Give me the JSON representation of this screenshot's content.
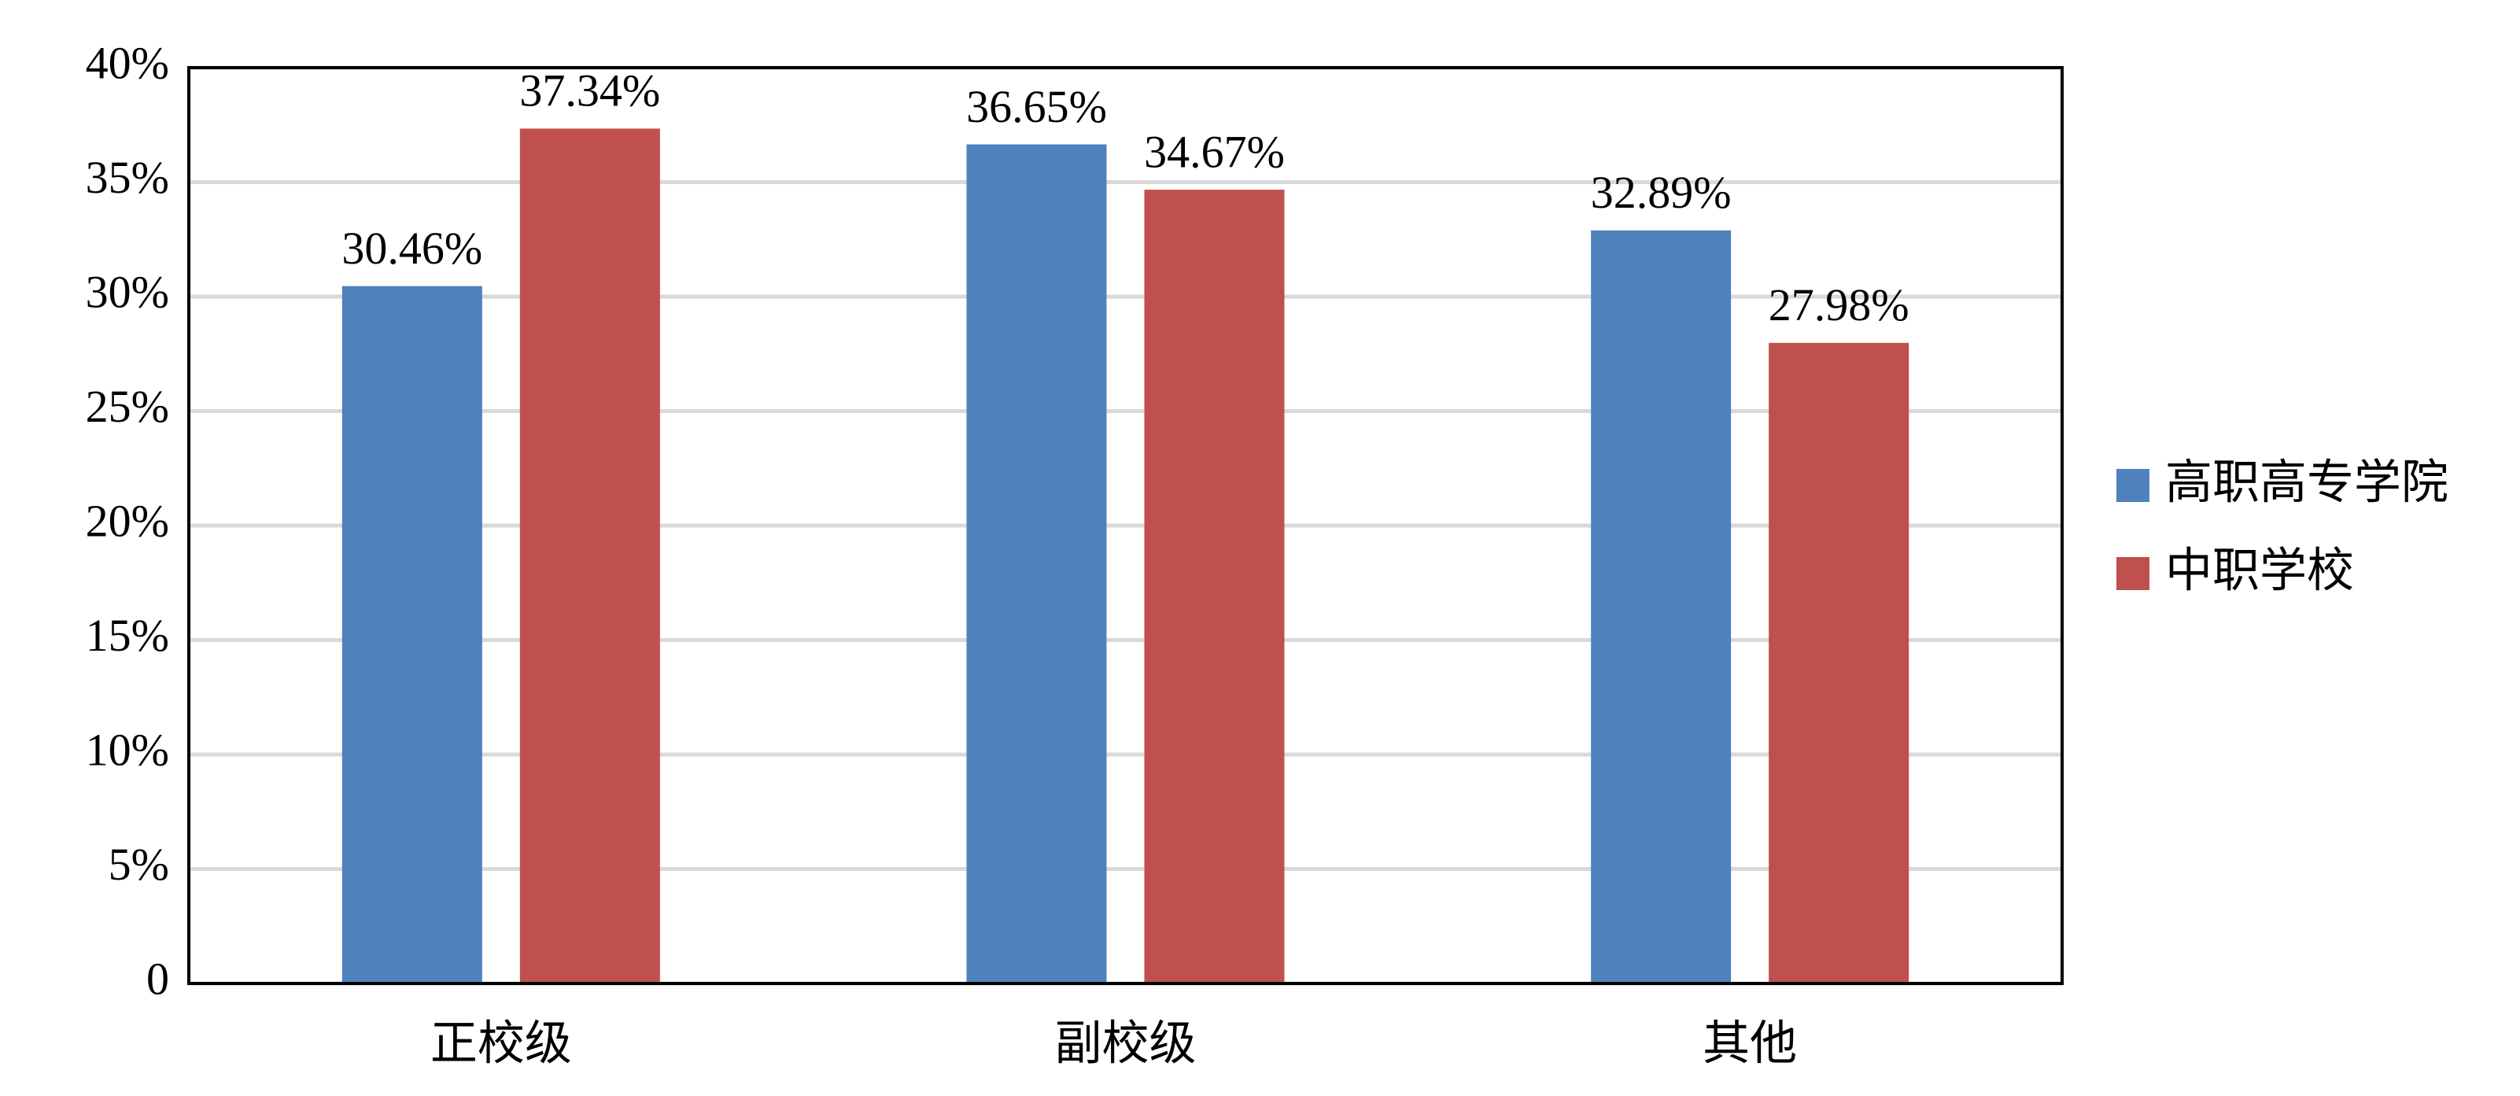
{
  "chart_data": {
    "type": "bar",
    "categories": [
      "正校级",
      "副校级",
      "其他"
    ],
    "series": [
      {
        "name": "高职高专学院",
        "color": "#4f81bd",
        "values": [
          30.46,
          36.65,
          32.89
        ],
        "value_labels": [
          "30.46%",
          "36.65%",
          "32.89%"
        ]
      },
      {
        "name": "中职学校",
        "color": "#c0504d",
        "values": [
          37.34,
          34.67,
          27.98
        ],
        "value_labels": [
          "37.34%",
          "34.67%",
          "27.98%"
        ]
      }
    ],
    "ylim": [
      0,
      40
    ],
    "yticks": [
      0,
      {
        "value": 5,
        "label": "5%"
      },
      {
        "value": 10,
        "label": "10%"
      },
      {
        "value": 15,
        "label": "15%"
      },
      {
        "value": 20,
        "label": "20%"
      },
      {
        "value": 25,
        "label": "25%"
      },
      {
        "value": 30,
        "label": "30%"
      },
      {
        "value": 35,
        "label": "35%"
      },
      {
        "value": 40,
        "label": "40%"
      }
    ],
    "grid": true,
    "legend": "right"
  }
}
